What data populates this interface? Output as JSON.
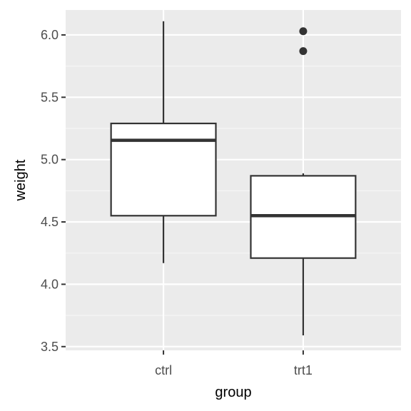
{
  "colors": {
    "panel": "#ebebeb",
    "grid_major": "#ffffff",
    "grid_minor": "#f5f5f5",
    "box_fill": "#ffffff",
    "box_stroke": "#333333",
    "tick_text": "#4d4d4d"
  },
  "chart_data": {
    "type": "boxplot",
    "xlabel": "group",
    "ylabel": "weight",
    "categories": [
      "ctrl",
      "trt1"
    ],
    "ylim": [
      3.47,
      6.2
    ],
    "yticks": [
      3.5,
      4.0,
      4.5,
      5.0,
      5.5,
      6.0
    ],
    "ytick_labels": [
      "3.5",
      "4.0",
      "4.5",
      "5.0",
      "5.5",
      "6.0"
    ],
    "grid": true,
    "boxes": [
      {
        "category": "ctrl",
        "whisker_low": 4.17,
        "q1": 4.55,
        "median": 5.155,
        "q3": 5.29,
        "whisker_high": 6.11,
        "outliers": []
      },
      {
        "category": "trt1",
        "whisker_low": 3.59,
        "q1": 4.21,
        "median": 4.55,
        "q3": 4.87,
        "whisker_high": 4.89,
        "outliers": [
          5.87,
          6.03
        ]
      }
    ]
  }
}
